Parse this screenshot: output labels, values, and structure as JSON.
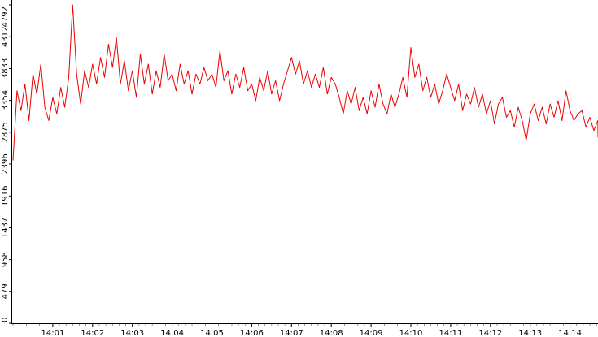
{
  "chart_data": {
    "type": "line",
    "title": "",
    "xlabel": "",
    "ylabel": "",
    "ylim": [
      0,
      4792
    ],
    "grid": false,
    "legend": "none",
    "y_ticks": [
      "0",
      "479",
      "958",
      "1437",
      "1916",
      "2396",
      "2875",
      "3354",
      "3833",
      "4312",
      "4792"
    ],
    "x_ticks": [
      "14:01",
      "14:02",
      "14:03",
      "14:04",
      "14:05",
      "14:06",
      "14:07",
      "14:08",
      "14:09",
      "14:10",
      "14:11",
      "14:12",
      "14:13",
      "14:14"
    ],
    "x_range_minutes": [
      0.0,
      14.9
    ],
    "series": [
      {
        "color": "#ee0000",
        "x": [
          0.0,
          0.1,
          0.2,
          0.3,
          0.4,
          0.5,
          0.6,
          0.7,
          0.8,
          0.9,
          1.0,
          1.1,
          1.2,
          1.3,
          1.4,
          1.5,
          1.6,
          1.7,
          1.8,
          1.9,
          2.0,
          2.1,
          2.2,
          2.3,
          2.4,
          2.5,
          2.6,
          2.7,
          2.8,
          2.9,
          3.0,
          3.1,
          3.2,
          3.3,
          3.4,
          3.5,
          3.6,
          3.7,
          3.8,
          3.9,
          4.0,
          4.1,
          4.2,
          4.3,
          4.4,
          4.5,
          4.6,
          4.7,
          4.8,
          4.9,
          5.0,
          5.1,
          5.2,
          5.3,
          5.4,
          5.5,
          5.6,
          5.7,
          5.8,
          5.9,
          6.0,
          6.1,
          6.2,
          6.3,
          6.4,
          6.5,
          6.6,
          6.7,
          6.8,
          6.9,
          7.0,
          7.1,
          7.2,
          7.3,
          7.4,
          7.5,
          7.6,
          7.7,
          7.8,
          7.9,
          8.0,
          8.1,
          8.2,
          8.3,
          8.4,
          8.5,
          8.6,
          8.7,
          8.8,
          8.9,
          9.0,
          9.1,
          9.2,
          9.3,
          9.4,
          9.5,
          9.6,
          9.7,
          9.8,
          9.9,
          10.0,
          10.1,
          10.2,
          10.3,
          10.4,
          10.5,
          10.6,
          10.7,
          10.8,
          10.9,
          11.0,
          11.1,
          11.2,
          11.3,
          11.4,
          11.5,
          11.6,
          11.7,
          11.8,
          11.9,
          12.0,
          12.1,
          12.2,
          12.3,
          12.4,
          12.5,
          12.6,
          12.7,
          12.8,
          12.9,
          13.0,
          13.1,
          13.2,
          13.3,
          13.4,
          13.5,
          13.6,
          13.7,
          13.8,
          13.9,
          14.0,
          14.1,
          14.2,
          14.3,
          14.4,
          14.5,
          14.6,
          14.7,
          14.8,
          14.9
        ],
        "y": [
          2450,
          3500,
          3200,
          3600,
          3050,
          3750,
          3450,
          3900,
          3250,
          3050,
          3400,
          3150,
          3550,
          3250,
          3700,
          4792,
          3750,
          3300,
          3800,
          3550,
          3900,
          3600,
          4000,
          3700,
          4200,
          3850,
          4300,
          3600,
          3950,
          3500,
          3800,
          3400,
          4050,
          3600,
          3900,
          3450,
          3800,
          3550,
          4050,
          3650,
          3750,
          3500,
          3900,
          3600,
          3800,
          3450,
          3750,
          3600,
          3850,
          3650,
          3750,
          3550,
          4100,
          3650,
          3800,
          3450,
          3750,
          3550,
          3850,
          3500,
          3600,
          3350,
          3700,
          3500,
          3800,
          3450,
          3650,
          3350,
          3600,
          3800,
          4000,
          3750,
          3950,
          3600,
          3800,
          3550,
          3750,
          3550,
          3850,
          3450,
          3700,
          3600,
          3400,
          3150,
          3500,
          3300,
          3550,
          3200,
          3400,
          3150,
          3500,
          3250,
          3600,
          3300,
          3150,
          3450,
          3250,
          3450,
          3700,
          3400,
          4150,
          3700,
          3900,
          3500,
          3700,
          3400,
          3600,
          3300,
          3500,
          3750,
          3550,
          3350,
          3600,
          3200,
          3450,
          3300,
          3550,
          3250,
          3450,
          3150,
          3350,
          3000,
          3300,
          3400,
          3100,
          3200,
          2950,
          3250,
          3050,
          2750,
          3150,
          3300,
          3050,
          3250,
          3000,
          3300,
          3100,
          3350,
          3050,
          3500,
          3200,
          3050,
          3150,
          3200,
          2950,
          3100,
          2900,
          3050,
          2800,
          2950
        ]
      }
    ]
  }
}
